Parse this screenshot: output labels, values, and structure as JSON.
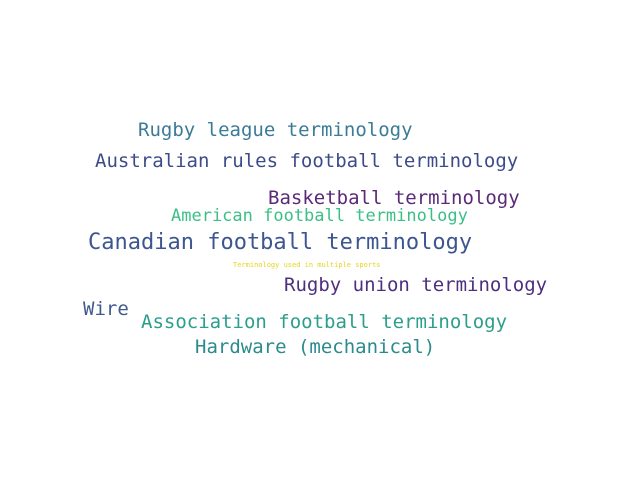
{
  "words": [
    {
      "text": "Rugby league terminology",
      "color": "#3b7b96"
    },
    {
      "text": "Australian rules football terminology",
      "color": "#3d4c89"
    },
    {
      "text": "Basketball terminology",
      "color": "#5a2a78"
    },
    {
      "text": "American football terminology",
      "color": "#3bbf86"
    },
    {
      "text": "Canadian football terminology",
      "color": "#3d5690"
    },
    {
      "text": "Terminology used in multiple sports",
      "color": "#e4d41f"
    },
    {
      "text": "Rugby union terminology",
      "color": "#4d2f7d"
    },
    {
      "text": "Wire",
      "color": "#3f5a8e"
    },
    {
      "text": "Association football terminology",
      "color": "#2b9e8c"
    },
    {
      "text": "Hardware (mechanical)",
      "color": "#2b8a8e"
    }
  ]
}
